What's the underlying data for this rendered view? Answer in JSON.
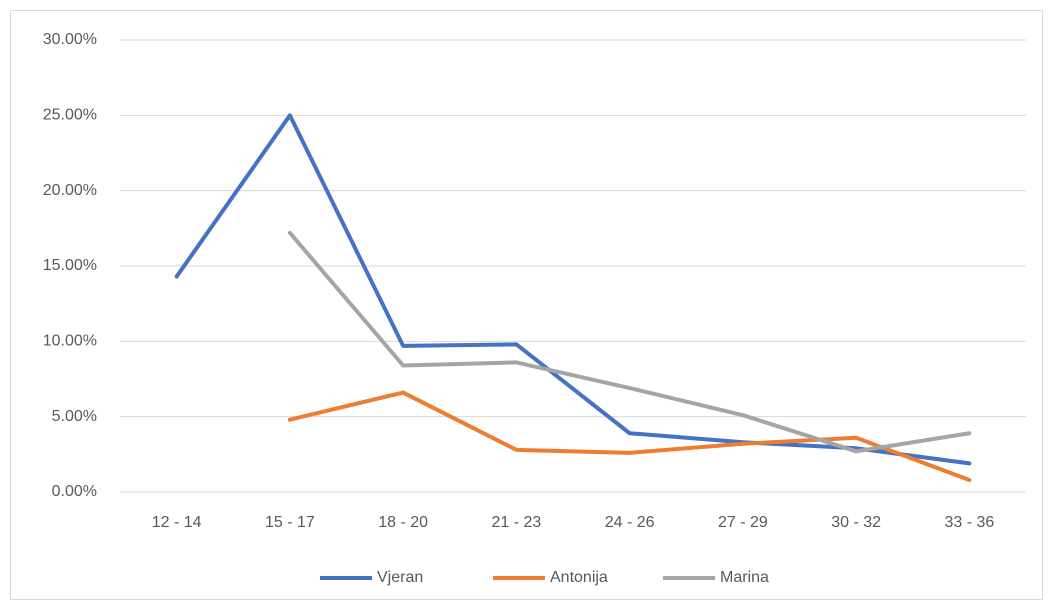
{
  "chart_data": {
    "type": "line",
    "categories": [
      "12 - 14",
      "15 - 17",
      "18 - 20",
      "21 - 23",
      "24 - 26",
      "27 - 29",
      "30 - 32",
      "33 - 36"
    ],
    "series": [
      {
        "name": "Vjeran",
        "color": "#4472c4",
        "values": [
          14.3,
          25.0,
          9.7,
          9.8,
          3.9,
          3.3,
          2.9,
          1.9
        ]
      },
      {
        "name": "Antonija",
        "color": "#ed7d31",
        "values": [
          null,
          4.8,
          6.6,
          2.8,
          2.6,
          3.2,
          3.6,
          0.8
        ]
      },
      {
        "name": "Marina",
        "color": "#a5a5a5",
        "values": [
          null,
          17.2,
          8.4,
          8.6,
          6.9,
          5.1,
          2.7,
          3.9
        ]
      }
    ],
    "ylim": [
      0,
      30
    ],
    "yticks": [
      {
        "value": 0,
        "label": "0.00%"
      },
      {
        "value": 5,
        "label": "5.00%"
      },
      {
        "value": 10,
        "label": "10.00%"
      },
      {
        "value": 15,
        "label": "15.00%"
      },
      {
        "value": 20,
        "label": "20.00%"
      },
      {
        "value": 25,
        "label": "25.00%"
      },
      {
        "value": 30,
        "label": "30.00%"
      }
    ],
    "grid": true,
    "legend": "bottom"
  }
}
